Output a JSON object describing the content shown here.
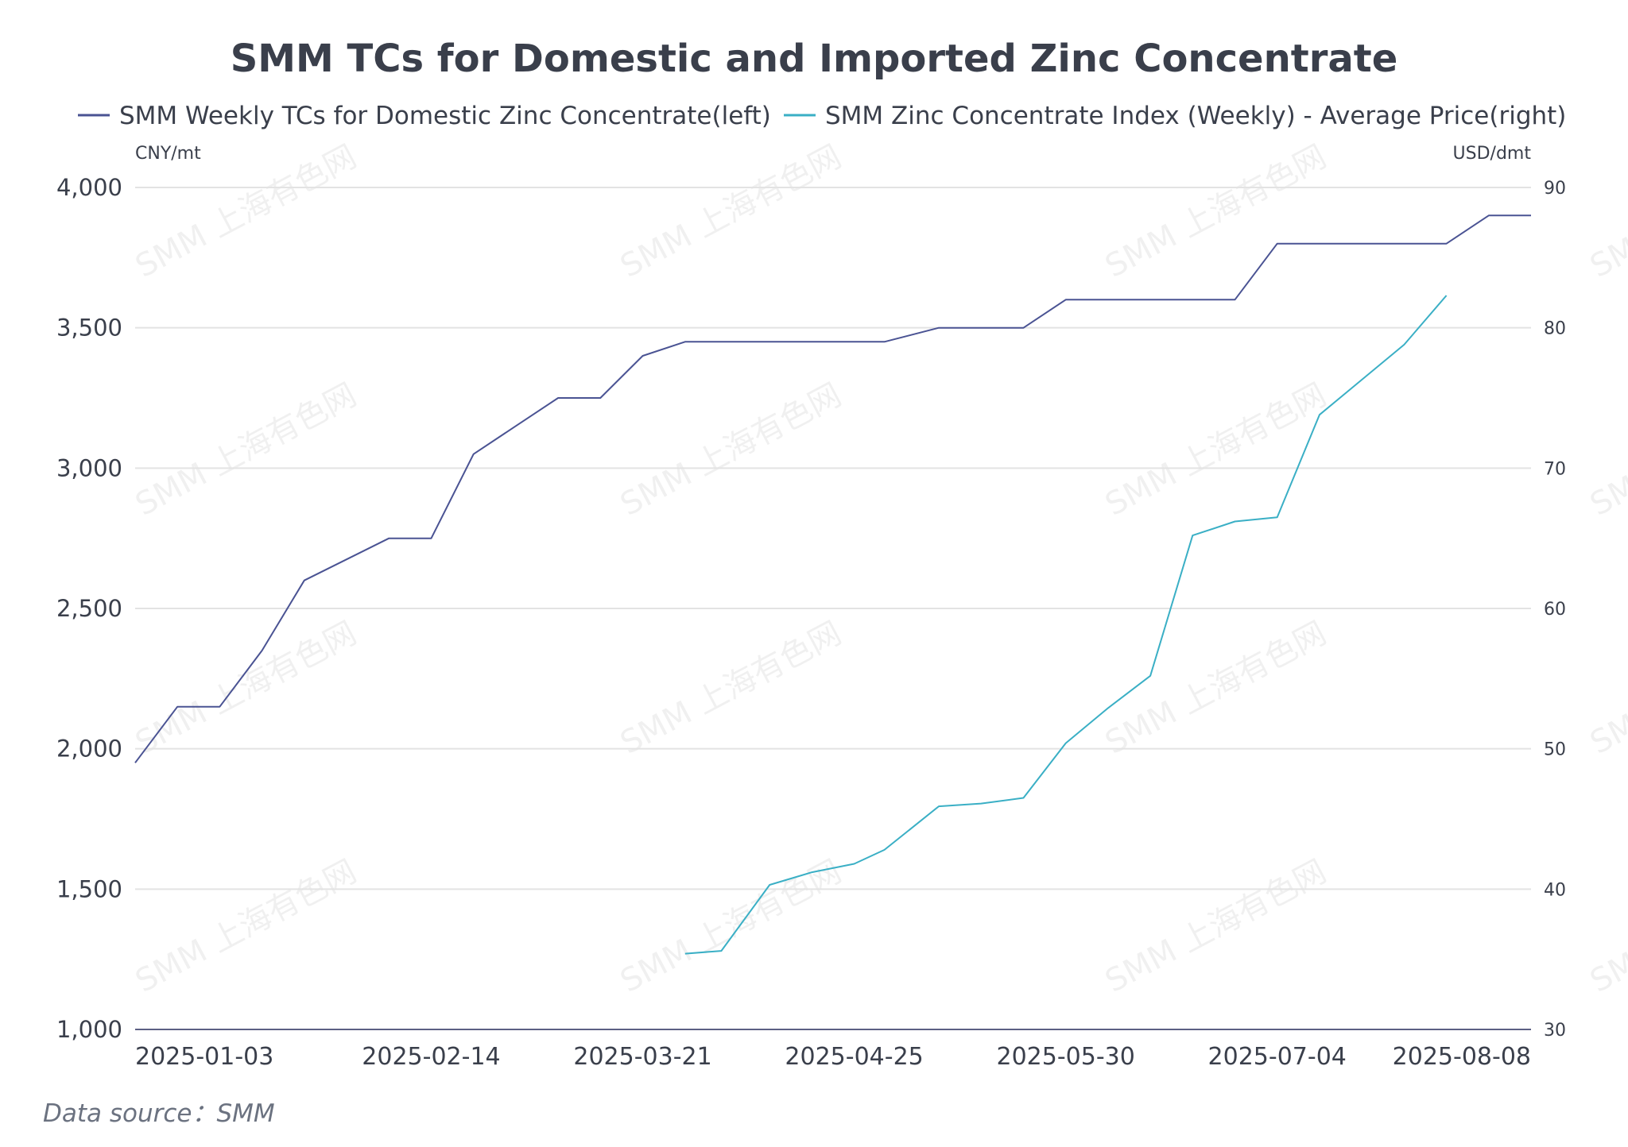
{
  "chart_data": {
    "type": "line",
    "title": "SMM TCs for Domestic and Imported Zinc Concentrate",
    "source_label": "Data source：SMM",
    "watermark": "SMM 上海有色网",
    "y_left_unit": "CNY/mt",
    "y_right_unit": "USD/dmt",
    "y_left_range": [
      1000,
      4000
    ],
    "y_right_range": [
      30,
      90
    ],
    "y_left_ticks": [
      "1,000",
      "1,500",
      "2,000",
      "2,500",
      "3,000",
      "3,500",
      "4,000"
    ],
    "y_right_ticks": [
      "30",
      "40",
      "50",
      "60",
      "70",
      "80",
      "90"
    ],
    "y_left_tick_values": [
      1000,
      1500,
      2000,
      2500,
      3000,
      3500,
      4000
    ],
    "y_right_tick_values": [
      30,
      40,
      50,
      60,
      70,
      80,
      90
    ],
    "x_tick_labels": [
      "2025-01-03",
      "2025-02-14",
      "2025-03-21",
      "2025-04-25",
      "2025-05-30",
      "2025-07-04",
      "2025-08-08"
    ],
    "grid": true,
    "legend_position": "top",
    "x": [
      "2024-12-27",
      "2025-01-03",
      "2025-01-10",
      "2025-01-17",
      "2025-01-24",
      "2025-02-07",
      "2025-02-14",
      "2025-02-21",
      "2025-02-28",
      "2025-03-07",
      "2025-03-14",
      "2025-03-21",
      "2025-03-28",
      "2025-04-03",
      "2025-04-11",
      "2025-04-18",
      "2025-04-25",
      "2025-04-30",
      "2025-05-09",
      "2025-05-16",
      "2025-05-23",
      "2025-05-30",
      "2025-06-06",
      "2025-06-13",
      "2025-06-20",
      "2025-06-27",
      "2025-07-04",
      "2025-07-11",
      "2025-07-18",
      "2025-07-25",
      "2025-08-01",
      "2025-08-08",
      "2025-08-15"
    ],
    "series": [
      {
        "name": "SMM Weekly TCs for Domestic Zinc Concentrate(left)",
        "axis": "left",
        "color": "#4a5393",
        "values": [
          1950,
          2150,
          2150,
          2350,
          2600,
          2750,
          2750,
          3050,
          3150,
          3250,
          3250,
          3400,
          3450,
          3450,
          3450,
          3450,
          3450,
          3450,
          3500,
          3500,
          3500,
          3600,
          3600,
          3600,
          3600,
          3600,
          3800,
          3800,
          3800,
          3800,
          3800,
          3900,
          3900
        ]
      },
      {
        "name": "SMM Zinc Concentrate Index (Weekly) - Average Price(right)",
        "axis": "right",
        "color": "#3aafc5",
        "values": [
          null,
          null,
          null,
          null,
          null,
          null,
          null,
          null,
          null,
          null,
          null,
          null,
          35.4,
          35.6,
          40.3,
          41.2,
          41.8,
          42.8,
          45.9,
          46.1,
          46.5,
          50.4,
          52.9,
          55.2,
          65.2,
          66.2,
          66.5,
          73.8,
          76.3,
          78.8,
          82.3,
          null,
          null
        ]
      }
    ]
  }
}
